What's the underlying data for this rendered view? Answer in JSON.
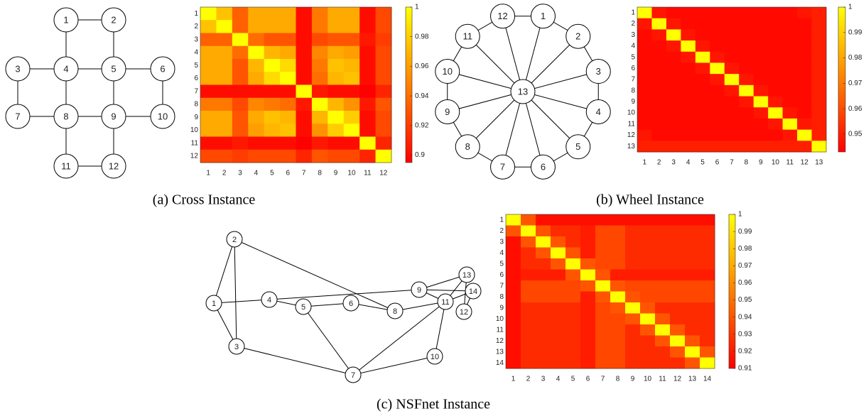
{
  "captions": [
    "(a) Cross Instance",
    "(b) Wheel Instance",
    "(c) NSFnet Instance"
  ],
  "diagrams": [
    {
      "nodes": [
        "1",
        "2",
        "3",
        "4",
        "5",
        "6",
        "7",
        "8",
        "9",
        "10",
        "11",
        "12"
      ]
    },
    {
      "nodes": [
        "1",
        "2",
        "3",
        "4",
        "5",
        "6",
        "7",
        "8",
        "9",
        "10",
        "11",
        "12",
        "13"
      ]
    },
    {
      "nodes": [
        "1",
        "2",
        "3",
        "4",
        "5",
        "6",
        "7",
        "8",
        "9",
        "10",
        "11",
        "12",
        "13",
        "14"
      ]
    }
  ],
  "chart_data": [
    {
      "type": "heatmap",
      "categories": [
        "1",
        "2",
        "3",
        "4",
        "5",
        "6",
        "7",
        "8",
        "9",
        "10",
        "11",
        "12"
      ],
      "zlim": [
        0.895,
        1
      ],
      "zticks": [
        0.9,
        0.92,
        0.94,
        0.96,
        0.98,
        1
      ],
      "values": [
        [
          1,
          0.975,
          0.935,
          0.965,
          0.965,
          0.965,
          0.9,
          0.945,
          0.965,
          0.965,
          0.9,
          0.925
        ],
        [
          0.975,
          1,
          0.935,
          0.965,
          0.965,
          0.965,
          0.9,
          0.945,
          0.965,
          0.965,
          0.9,
          0.925
        ],
        [
          0.935,
          0.935,
          1,
          0.94,
          0.93,
          0.93,
          0.9,
          0.925,
          0.93,
          0.93,
          0.905,
          0.92
        ],
        [
          0.965,
          0.965,
          0.94,
          1,
          0.97,
          0.965,
          0.9,
          0.95,
          0.965,
          0.96,
          0.9,
          0.925
        ],
        [
          0.965,
          0.965,
          0.93,
          0.97,
          1,
          0.985,
          0.9,
          0.945,
          0.975,
          0.97,
          0.9,
          0.925
        ],
        [
          0.965,
          0.965,
          0.93,
          0.965,
          0.985,
          1,
          0.9,
          0.94,
          0.97,
          0.975,
          0.9,
          0.925
        ],
        [
          0.9,
          0.9,
          0.9,
          0.9,
          0.9,
          0.9,
          1,
          0.905,
          0.9,
          0.9,
          0.895,
          0.91
        ],
        [
          0.945,
          0.945,
          0.925,
          0.95,
          0.945,
          0.94,
          0.905,
          1,
          0.97,
          0.955,
          0.905,
          0.93
        ],
        [
          0.965,
          0.965,
          0.93,
          0.965,
          0.975,
          0.97,
          0.9,
          0.97,
          1,
          0.98,
          0.9,
          0.925
        ],
        [
          0.965,
          0.965,
          0.93,
          0.96,
          0.97,
          0.975,
          0.9,
          0.955,
          0.98,
          1,
          0.9,
          0.925
        ],
        [
          0.9,
          0.9,
          0.905,
          0.9,
          0.9,
          0.9,
          0.895,
          0.905,
          0.9,
          0.9,
          1,
          0.91
        ],
        [
          0.925,
          0.925,
          0.92,
          0.925,
          0.925,
          0.925,
          0.91,
          0.93,
          0.925,
          0.925,
          0.91,
          1
        ]
      ]
    },
    {
      "type": "heatmap",
      "categories": [
        "1",
        "2",
        "3",
        "4",
        "5",
        "6",
        "7",
        "8",
        "9",
        "10",
        "11",
        "12",
        "13"
      ],
      "zlim": [
        0.943,
        1
      ],
      "zticks": [
        0.95,
        0.96,
        0.97,
        0.98,
        0.99,
        1
      ],
      "values": [
        [
          1,
          0.948,
          0.945,
          0.945,
          0.945,
          0.945,
          0.945,
          0.945,
          0.945,
          0.945,
          0.945,
          0.948,
          0.95
        ],
        [
          0.948,
          1,
          0.948,
          0.945,
          0.945,
          0.945,
          0.945,
          0.945,
          0.945,
          0.945,
          0.945,
          0.945,
          0.95
        ],
        [
          0.945,
          0.948,
          1,
          0.948,
          0.945,
          0.945,
          0.945,
          0.945,
          0.945,
          0.945,
          0.945,
          0.945,
          0.95
        ],
        [
          0.945,
          0.945,
          0.948,
          1,
          0.948,
          0.945,
          0.945,
          0.945,
          0.945,
          0.945,
          0.945,
          0.945,
          0.95
        ],
        [
          0.945,
          0.945,
          0.945,
          0.948,
          1,
          0.948,
          0.945,
          0.945,
          0.945,
          0.945,
          0.945,
          0.945,
          0.95
        ],
        [
          0.945,
          0.945,
          0.945,
          0.945,
          0.948,
          1,
          0.948,
          0.945,
          0.945,
          0.945,
          0.945,
          0.945,
          0.95
        ],
        [
          0.945,
          0.945,
          0.945,
          0.945,
          0.945,
          0.948,
          1,
          0.948,
          0.945,
          0.945,
          0.945,
          0.945,
          0.95
        ],
        [
          0.945,
          0.945,
          0.945,
          0.945,
          0.945,
          0.945,
          0.948,
          1,
          0.948,
          0.945,
          0.945,
          0.945,
          0.95
        ],
        [
          0.945,
          0.945,
          0.945,
          0.945,
          0.945,
          0.945,
          0.945,
          0.948,
          1,
          0.948,
          0.945,
          0.945,
          0.95
        ],
        [
          0.945,
          0.945,
          0.945,
          0.945,
          0.945,
          0.945,
          0.945,
          0.945,
          0.948,
          1,
          0.948,
          0.945,
          0.95
        ],
        [
          0.945,
          0.945,
          0.945,
          0.945,
          0.945,
          0.945,
          0.945,
          0.945,
          0.945,
          0.948,
          1,
          0.948,
          0.95
        ],
        [
          0.948,
          0.945,
          0.945,
          0.945,
          0.945,
          0.945,
          0.945,
          0.945,
          0.945,
          0.945,
          0.948,
          1,
          0.95
        ],
        [
          0.95,
          0.95,
          0.95,
          0.95,
          0.95,
          0.95,
          0.95,
          0.95,
          0.95,
          0.95,
          0.95,
          0.95,
          1
        ]
      ]
    },
    {
      "type": "heatmap",
      "categories": [
        "1",
        "2",
        "3",
        "4",
        "5",
        "6",
        "7",
        "8",
        "9",
        "10",
        "11",
        "12",
        "13",
        "14"
      ],
      "zlim": [
        0.91,
        1
      ],
      "zticks": [
        0.91,
        0.92,
        0.93,
        0.94,
        0.95,
        0.96,
        0.97,
        0.98,
        0.99,
        1
      ],
      "values": [
        [
          1,
          0.94,
          0.915,
          0.915,
          0.915,
          0.915,
          0.915,
          0.915,
          0.915,
          0.915,
          0.915,
          0.915,
          0.915,
          0.915
        ],
        [
          0.94,
          1,
          0.94,
          0.925,
          0.925,
          0.92,
          0.935,
          0.935,
          0.925,
          0.925,
          0.925,
          0.925,
          0.925,
          0.925
        ],
        [
          0.915,
          0.94,
          1,
          0.94,
          0.925,
          0.92,
          0.935,
          0.935,
          0.925,
          0.925,
          0.925,
          0.925,
          0.925,
          0.925
        ],
        [
          0.915,
          0.925,
          0.94,
          1,
          0.94,
          0.92,
          0.935,
          0.935,
          0.925,
          0.925,
          0.925,
          0.925,
          0.925,
          0.925
        ],
        [
          0.915,
          0.925,
          0.925,
          0.94,
          1,
          0.94,
          0.935,
          0.935,
          0.925,
          0.925,
          0.925,
          0.925,
          0.925,
          0.925
        ],
        [
          0.915,
          0.92,
          0.92,
          0.92,
          0.94,
          1,
          0.94,
          0.92,
          0.92,
          0.92,
          0.92,
          0.92,
          0.92,
          0.92
        ],
        [
          0.915,
          0.935,
          0.935,
          0.935,
          0.935,
          0.94,
          1,
          0.94,
          0.935,
          0.935,
          0.935,
          0.935,
          0.935,
          0.935
        ],
        [
          0.915,
          0.935,
          0.935,
          0.935,
          0.935,
          0.92,
          0.94,
          1,
          0.94,
          0.935,
          0.935,
          0.935,
          0.935,
          0.935
        ],
        [
          0.915,
          0.925,
          0.925,
          0.925,
          0.925,
          0.92,
          0.935,
          0.94,
          1,
          0.94,
          0.925,
          0.925,
          0.925,
          0.925
        ],
        [
          0.915,
          0.925,
          0.925,
          0.925,
          0.925,
          0.92,
          0.935,
          0.935,
          0.94,
          1,
          0.94,
          0.925,
          0.925,
          0.925
        ],
        [
          0.915,
          0.925,
          0.925,
          0.925,
          0.925,
          0.92,
          0.935,
          0.935,
          0.925,
          0.94,
          1,
          0.94,
          0.925,
          0.925
        ],
        [
          0.915,
          0.925,
          0.925,
          0.925,
          0.925,
          0.92,
          0.935,
          0.935,
          0.925,
          0.925,
          0.94,
          1,
          0.94,
          0.925
        ],
        [
          0.915,
          0.925,
          0.925,
          0.925,
          0.925,
          0.92,
          0.935,
          0.935,
          0.925,
          0.925,
          0.925,
          0.94,
          1,
          0.94
        ],
        [
          0.915,
          0.925,
          0.925,
          0.925,
          0.925,
          0.92,
          0.935,
          0.935,
          0.925,
          0.925,
          0.925,
          0.925,
          0.94,
          1
        ]
      ]
    }
  ]
}
